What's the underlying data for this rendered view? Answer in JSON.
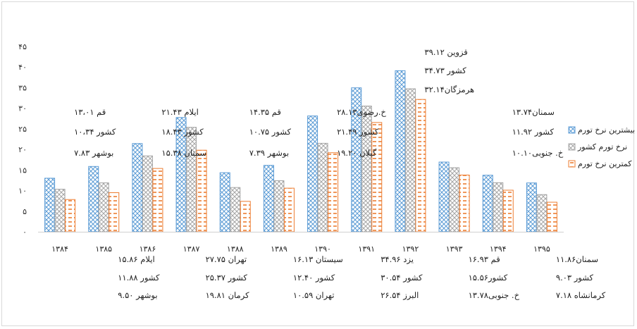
{
  "chart_data": {
    "type": "bar",
    "categories": [
      "۱۳۸۴",
      "۱۳۸۵",
      "۱۳۸۶",
      "۱۳۸۷",
      "۱۳۸۸",
      "۱۳۸۹",
      "۱۳۹۰",
      "۱۳۹۱",
      "۱۳۹۲",
      "۱۳۹۳",
      "۱۳۹۴",
      "۱۳۹۵"
    ],
    "ylim": [
      0,
      45
    ],
    "yticks": [
      {
        "v": 0,
        "label": "۰"
      },
      {
        "v": 5,
        "label": "۵"
      },
      {
        "v": 10,
        "label": "۱۰"
      },
      {
        "v": 15,
        "label": "۱۵"
      },
      {
        "v": 20,
        "label": "۲۰"
      },
      {
        "v": 25,
        "label": "۲۵"
      },
      {
        "v": 30,
        "label": "۳۰"
      },
      {
        "v": 35,
        "label": "۳۵"
      },
      {
        "v": 40,
        "label": "۴۰"
      },
      {
        "v": 45,
        "label": "۴۵"
      }
    ],
    "series": [
      {
        "name": "بیشترین نرخ تورم",
        "color": "#5b9bd5",
        "pattern": "cross",
        "values": [
          13.01,
          15.86,
          21.43,
          27.75,
          14.35,
          16.13,
          28.13,
          34.96,
          39.12,
          16.93,
          13.74,
          11.86
        ]
      },
      {
        "name": "نرخ تورم کشور",
        "color": "#a5a5a5",
        "pattern": "cross",
        "values": [
          10.34,
          11.88,
          18.43,
          25.37,
          10.75,
          12.4,
          21.49,
          30.54,
          34.73,
          15.56,
          11.92,
          9.03
        ]
      },
      {
        "name": "کمترین نرخ تورم",
        "color": "#ed7d31",
        "pattern": "dash",
        "values": [
          7.83,
          9.5,
          15.38,
          19.81,
          7.39,
          10.59,
          19.2,
          26.54,
          32.14,
          13.78,
          10.1,
          7.18
        ]
      }
    ],
    "legend_position": "right",
    "grid": false,
    "annotations": [
      {
        "cat": 0,
        "pos": "above",
        "lines": [
          "قم  ۱۳،۰۱",
          "کشور ۱۰،۳۴",
          "بوشهر ۷.۸۳"
        ]
      },
      {
        "cat": 2,
        "pos": "above",
        "lines": [
          "ایلام ۲۱.۴۳",
          "کشور ۱۸.۴۳",
          "سمنان ۱۵.۳۸"
        ]
      },
      {
        "cat": 4,
        "pos": "above",
        "lines": [
          "قم  ۱۴.۳۵",
          "کشور ۱۰.۷۵",
          "بوشهر  ۷.۳۹"
        ]
      },
      {
        "cat": 6,
        "pos": "above",
        "lines": [
          "خ.رضوی۲۸.۱۳",
          "کشور ۲۱.۴۹",
          "گیلان ۱۹.۲۰"
        ]
      },
      {
        "cat": 8,
        "pos": "above",
        "lines": [
          "قزوین ۳۹.۱۲",
          "کشور ۳۴.۷۳",
          "هرمزگان۳۲.۱۴"
        ]
      },
      {
        "cat": 10,
        "pos": "above",
        "lines": [
          "سمنان۱۳.۷۴",
          "کشور ۱۱.۹۲",
          "خ. جنوبی۱۰.۱۰"
        ]
      },
      {
        "cat": 1,
        "pos": "below",
        "lines": [
          "ایلام ۱۵.۸۶",
          "کشور ۱۱.۸۸",
          "بوشهر ۹.۵۰"
        ]
      },
      {
        "cat": 3,
        "pos": "below",
        "lines": [
          "تهران ۲۷.۷۵",
          "کشور ۲۵.۳۷",
          "کرمان ۱۹.۸۱"
        ]
      },
      {
        "cat": 5,
        "pos": "below",
        "lines": [
          "سیستان ۱۶.۱۳",
          "کشور  ۱۲.۴۰",
          "تهران  ۱۰.۵۹"
        ]
      },
      {
        "cat": 7,
        "pos": "below",
        "lines": [
          "یزد ۳۴.۹۶",
          "کشور ۳۰.۵۴",
          "البرز ۲۶.۵۴"
        ]
      },
      {
        "cat": 9,
        "pos": "below",
        "lines": [
          "قم ۱۶.۹۳",
          "کشور۱۵.۵۶",
          "خ. جنوبی۱۳.۷۸"
        ]
      },
      {
        "cat": 11,
        "pos": "below",
        "lines": [
          "سمنان۱۱.۸۶",
          "کشور ۹.۰۳",
          "کرمانشاه ۷.۱۸"
        ]
      }
    ]
  }
}
